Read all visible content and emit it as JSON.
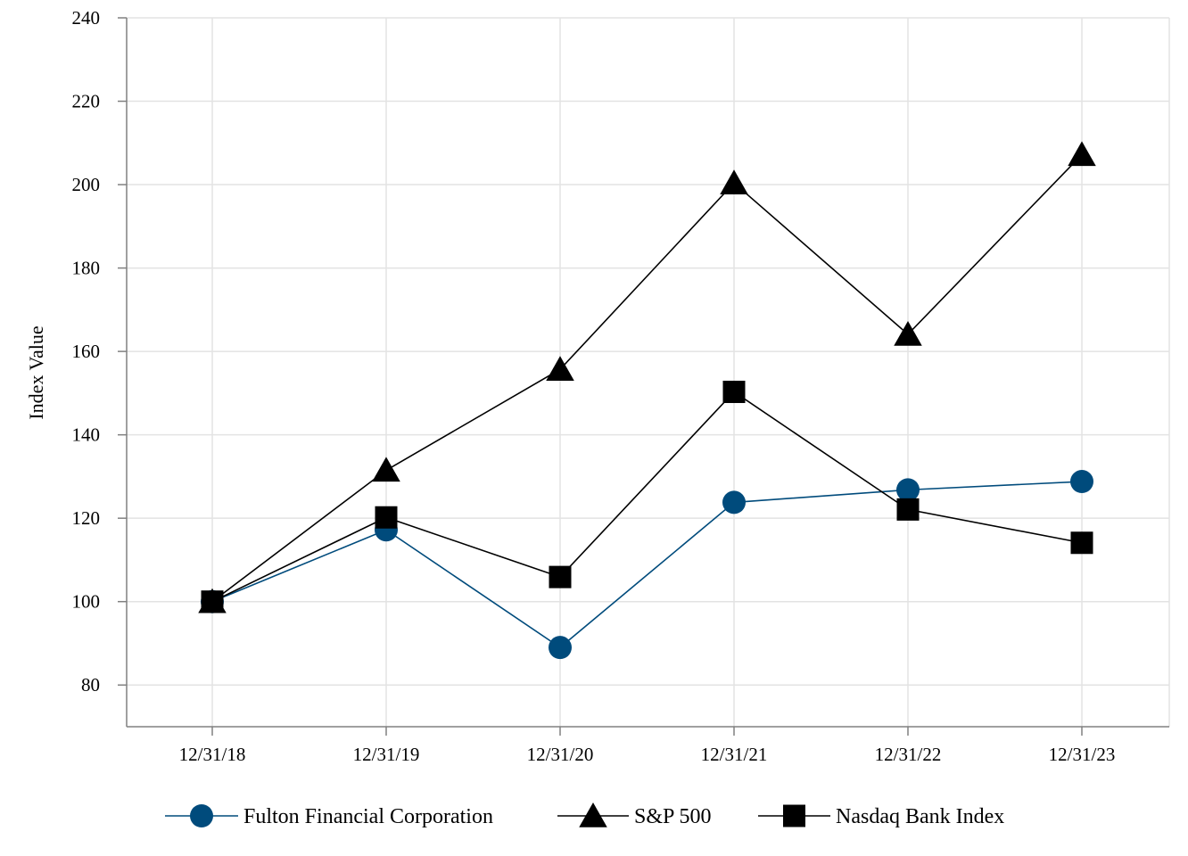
{
  "chart_data": {
    "type": "line",
    "title": "",
    "xlabel": "",
    "ylabel": "Index Value",
    "categories": [
      "12/31/18",
      "12/31/19",
      "12/31/20",
      "12/31/21",
      "12/31/22",
      "12/31/23"
    ],
    "ylim": [
      70,
      240
    ],
    "yticks": [
      80,
      100,
      120,
      140,
      160,
      180,
      200,
      220,
      240
    ],
    "grid": true,
    "legend_position": "bottom",
    "series": [
      {
        "name": "Fulton Financial Corporation",
        "marker": "circle",
        "color": "#004b7c",
        "values": [
          100,
          117.2,
          89,
          123.8,
          126.8,
          128.8
        ]
      },
      {
        "name": "S&P 500",
        "marker": "triangle",
        "color": "#000000",
        "values": [
          100,
          131.5,
          155.7,
          200.4,
          164.1,
          207.2
        ]
      },
      {
        "name": "Nasdaq Bank Index",
        "marker": "square",
        "color": "#000000",
        "values": [
          100,
          120.2,
          105.9,
          150.3,
          122.1,
          114.1
        ]
      }
    ]
  }
}
